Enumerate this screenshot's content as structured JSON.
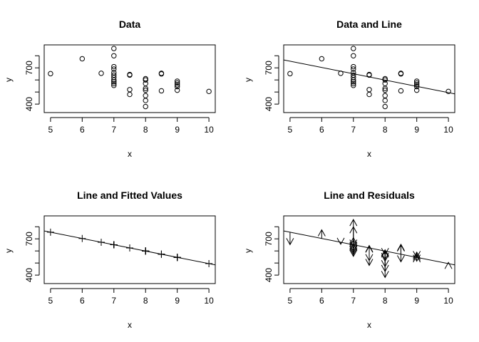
{
  "chart_data": [
    {
      "panel": "data",
      "type": "scatter",
      "title": "Data",
      "xlabel": "x",
      "ylabel": "y",
      "xlim": [
        4.8,
        10.2
      ],
      "ylim": [
        330,
        890
      ],
      "xticks": [
        5,
        6,
        7,
        8,
        9,
        10
      ],
      "yticks": [
        400,
        700
      ],
      "yticks_minor": [
        400,
        500,
        600,
        700,
        800
      ],
      "show_points": true,
      "show_line": false,
      "show_fitted": false,
      "show_residuals": false
    },
    {
      "panel": "data-and-line",
      "type": "scatter",
      "title": "Data and Line",
      "xlabel": "x",
      "ylabel": "y",
      "xlim": [
        4.8,
        10.2
      ],
      "ylim": [
        330,
        890
      ],
      "xticks": [
        5,
        6,
        7,
        8,
        9,
        10
      ],
      "yticks": [
        400,
        700
      ],
      "yticks_minor": [
        400,
        500,
        600,
        700,
        800
      ],
      "show_points": true,
      "show_line": true,
      "show_fitted": false,
      "show_residuals": false
    },
    {
      "panel": "line-and-fitted",
      "type": "scatter",
      "title": "Line and Fitted Values",
      "xlabel": "x",
      "ylabel": "y",
      "xlim": [
        4.8,
        10.2
      ],
      "ylim": [
        330,
        890
      ],
      "xticks": [
        5,
        6,
        7,
        8,
        9,
        10
      ],
      "yticks": [
        400,
        700
      ],
      "yticks_minor": [
        400,
        500,
        600,
        700,
        800
      ],
      "show_points": false,
      "show_line": true,
      "show_fitted": true,
      "show_residuals": false
    },
    {
      "panel": "line-and-residuals",
      "type": "scatter",
      "title": "Line and Residuals",
      "xlabel": "x",
      "ylabel": "y",
      "xlim": [
        4.8,
        10.2
      ],
      "ylim": [
        330,
        890
      ],
      "xticks": [
        5,
        6,
        7,
        8,
        9,
        10
      ],
      "yticks": [
        400,
        700
      ],
      "yticks_minor": [
        400,
        500,
        600,
        700,
        800
      ],
      "show_points": false,
      "show_line": true,
      "show_fitted": false,
      "show_residuals": true
    }
  ],
  "shared_data": {
    "points": [
      {
        "x": 5,
        "y": 652
      },
      {
        "x": 6,
        "y": 775
      },
      {
        "x": 6.6,
        "y": 655
      },
      {
        "x": 7,
        "y": 860
      },
      {
        "x": 7,
        "y": 800
      },
      {
        "x": 7,
        "y": 710
      },
      {
        "x": 7,
        "y": 690
      },
      {
        "x": 7,
        "y": 660
      },
      {
        "x": 7,
        "y": 640
      },
      {
        "x": 7,
        "y": 620
      },
      {
        "x": 7,
        "y": 600
      },
      {
        "x": 7,
        "y": 585
      },
      {
        "x": 7,
        "y": 570
      },
      {
        "x": 7,
        "y": 555
      },
      {
        "x": 7.5,
        "y": 645
      },
      {
        "x": 7.5,
        "y": 640
      },
      {
        "x": 7.5,
        "y": 520
      },
      {
        "x": 7.5,
        "y": 480
      },
      {
        "x": 8,
        "y": 610
      },
      {
        "x": 8,
        "y": 600
      },
      {
        "x": 8,
        "y": 570
      },
      {
        "x": 8,
        "y": 530
      },
      {
        "x": 8,
        "y": 515
      },
      {
        "x": 8,
        "y": 470
      },
      {
        "x": 8,
        "y": 430
      },
      {
        "x": 8,
        "y": 380
      },
      {
        "x": 8.5,
        "y": 655
      },
      {
        "x": 8.5,
        "y": 650
      },
      {
        "x": 8.5,
        "y": 510
      },
      {
        "x": 9,
        "y": 590
      },
      {
        "x": 9,
        "y": 575
      },
      {
        "x": 9,
        "y": 560
      },
      {
        "x": 9,
        "y": 545
      },
      {
        "x": 9,
        "y": 515
      },
      {
        "x": 10,
        "y": 505
      }
    ],
    "line": {
      "intercept": 1015,
      "slope": -52
    },
    "colors": {
      "ink": "#000000",
      "background": "#ffffff"
    }
  }
}
